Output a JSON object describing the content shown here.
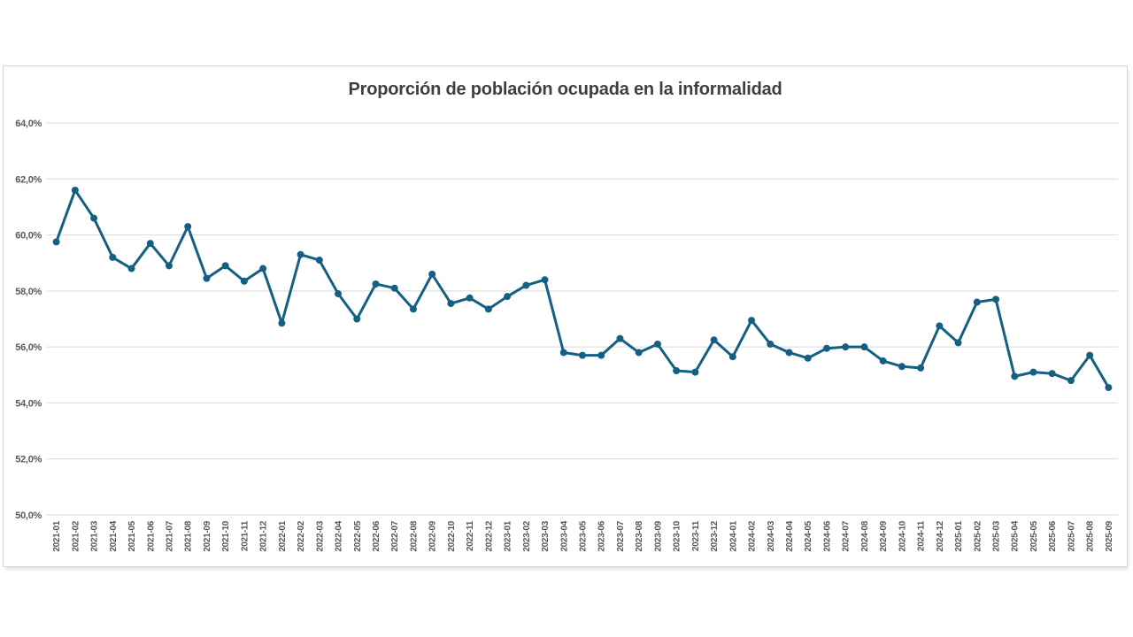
{
  "page": {
    "background": "#ffffff"
  },
  "chart_box": {
    "border_color": "#d6d6d6",
    "background": "#ffffff"
  },
  "chart_data": {
    "type": "line",
    "title": "Proporción de población ocupada en la informalidad",
    "title_color": "#3f3f3f",
    "xlabel": "",
    "ylabel": "",
    "ylim": [
      50,
      64
    ],
    "grid": true,
    "legend": "none",
    "line_color": "#156082",
    "marker": "circle",
    "grid_color": "#d9d9d9",
    "axis_label_color": "#595959",
    "y_ticks": {
      "values": [
        64,
        62,
        60,
        58,
        56,
        54,
        52,
        50
      ],
      "labels": [
        "64,0%",
        "62,0%",
        "60,0%",
        "58,0%",
        "56,0%",
        "54,0%",
        "52,0%",
        "50,0%"
      ]
    },
    "categories": [
      "2021-01",
      "2021-02",
      "2021-03",
      "2021-04",
      "2021-05",
      "2021-06",
      "2021-07",
      "2021-08",
      "2021-09",
      "2021-10",
      "2021-11",
      "2021-12",
      "2022-01",
      "2022-02",
      "2022-03",
      "2022-04",
      "2022-05",
      "2022-06",
      "2022-07",
      "2022-08",
      "2022-09",
      "2022-10",
      "2022-11",
      "2022-12",
      "2023-01",
      "2023-02",
      "2023-03",
      "2023-04",
      "2023-05",
      "2023-06",
      "2023-07",
      "2023-08",
      "2023-09",
      "2023-10",
      "2023-11",
      "2023-12",
      "2024-01",
      "2024-02",
      "2024-03",
      "2024-04",
      "2024-05",
      "2024-06",
      "2024-07",
      "2024-08",
      "2024-09",
      "2024-10",
      "2024-11",
      "2024-12",
      "2025-01",
      "2025-02",
      "2025-03",
      "2025-04",
      "2025-05",
      "2025-06",
      "2025-07",
      "2025-08",
      "2025-09"
    ],
    "values": [
      59.75,
      61.6,
      60.6,
      59.2,
      58.8,
      59.7,
      58.9,
      60.3,
      58.45,
      58.9,
      58.35,
      58.8,
      56.85,
      59.3,
      59.1,
      57.9,
      57.0,
      58.25,
      58.1,
      57.35,
      58.6,
      57.55,
      57.75,
      57.35,
      57.8,
      58.2,
      58.4,
      55.8,
      55.7,
      55.7,
      56.3,
      55.8,
      56.1,
      55.15,
      55.1,
      56.25,
      55.65,
      56.95,
      56.1,
      55.8,
      55.6,
      55.95,
      56.0,
      56.0,
      55.5,
      55.3,
      55.25,
      56.75,
      56.15,
      57.6,
      57.7,
      54.95,
      55.1,
      55.05,
      54.8,
      55.7,
      54.55
    ]
  }
}
